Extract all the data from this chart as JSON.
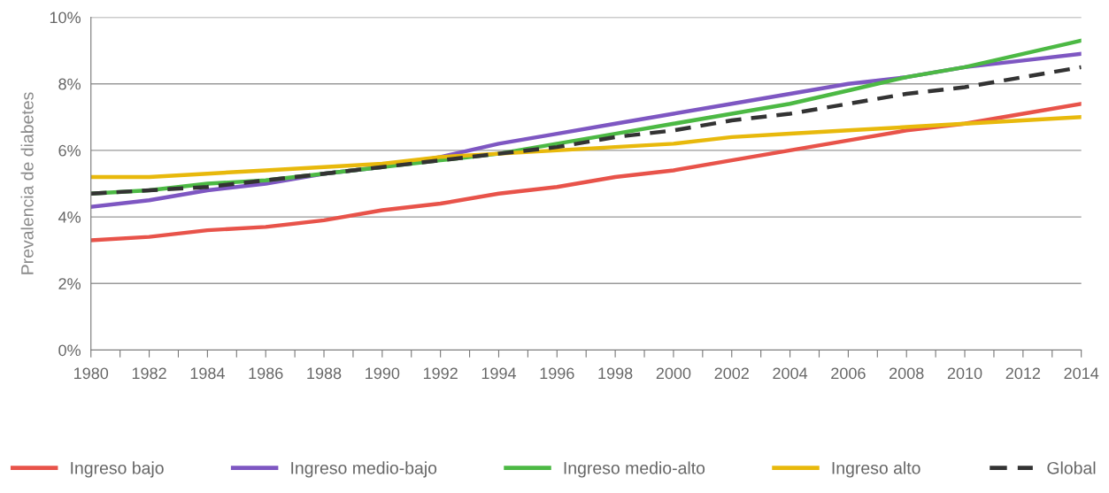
{
  "chart_data": {
    "type": "line",
    "ylabel": "Prevalencia de diabetes",
    "x": [
      1980,
      1982,
      1984,
      1986,
      1988,
      1990,
      1992,
      1994,
      1996,
      1998,
      2000,
      2002,
      2004,
      2006,
      2008,
      2010,
      2012,
      2014
    ],
    "xlim": [
      1980,
      2014
    ],
    "xticks": [
      1980,
      {
        "value": 1981,
        "label": null
      },
      1982,
      {
        "value": 1983,
        "label": null
      },
      1984,
      {
        "value": 1985,
        "label": null
      },
      1986,
      {
        "value": 1987,
        "label": null
      },
      1988,
      {
        "value": 1989,
        "label": null
      },
      1990,
      {
        "value": 1991,
        "label": null
      },
      1992,
      {
        "value": 1993,
        "label": null
      },
      1994,
      {
        "value": 1995,
        "label": null
      },
      1996,
      {
        "value": 1997,
        "label": null
      },
      1998,
      {
        "value": 1999,
        "label": null
      },
      2000,
      {
        "value": 2001,
        "label": null
      },
      2002,
      {
        "value": 2003,
        "label": null
      },
      2004,
      {
        "value": 2005,
        "label": null
      },
      2006,
      {
        "value": 2007,
        "label": null
      },
      2008,
      {
        "value": 2009,
        "label": null
      },
      2010,
      {
        "value": 2011,
        "label": null
      },
      2012,
      {
        "value": 2013,
        "label": null
      },
      2014
    ],
    "ylim": [
      0,
      10
    ],
    "yticks": [
      {
        "value": 0,
        "label": "0%"
      },
      {
        "value": 2,
        "label": "2%"
      },
      {
        "value": 4,
        "label": "4%"
      },
      {
        "value": 6,
        "label": "6%"
      },
      {
        "value": 8,
        "label": "8%"
      },
      {
        "value": 10,
        "label": "10%"
      }
    ],
    "grid": "y",
    "legend": "bottom",
    "marker": "none",
    "series": [
      {
        "name": "Ingreso bajo",
        "color": "#e8534a",
        "line_style": "solid",
        "values": [
          3.3,
          3.4,
          3.6,
          3.7,
          3.9,
          4.2,
          4.4,
          4.7,
          4.9,
          5.2,
          5.4,
          5.7,
          6.0,
          6.3,
          6.6,
          6.8,
          7.1,
          7.4
        ]
      },
      {
        "name": "Ingreso medio-bajo",
        "color": "#7e57c2",
        "line_style": "solid",
        "values": [
          4.3,
          4.5,
          4.8,
          5.0,
          5.3,
          5.5,
          5.8,
          6.2,
          6.5,
          6.8,
          7.1,
          7.4,
          7.7,
          8.0,
          8.2,
          8.5,
          8.7,
          8.9
        ]
      },
      {
        "name": "Ingreso medio-alto",
        "color": "#4cb944",
        "line_style": "solid",
        "values": [
          4.7,
          4.8,
          5.0,
          5.1,
          5.3,
          5.5,
          5.7,
          5.9,
          6.2,
          6.5,
          6.8,
          7.1,
          7.4,
          7.8,
          8.2,
          8.5,
          8.9,
          9.3
        ]
      },
      {
        "name": "Ingreso alto",
        "color": "#e8b90c",
        "line_style": "solid",
        "values": [
          5.2,
          5.2,
          5.3,
          5.4,
          5.5,
          5.6,
          5.8,
          5.9,
          6.0,
          6.1,
          6.2,
          6.4,
          6.5,
          6.6,
          6.7,
          6.8,
          6.9,
          7.0
        ]
      },
      {
        "name": "Global",
        "color": "#333333",
        "line_style": "dashed",
        "values": [
          4.7,
          4.8,
          4.9,
          5.1,
          5.3,
          5.5,
          5.7,
          5.9,
          6.1,
          6.4,
          6.6,
          6.9,
          7.1,
          7.4,
          7.7,
          7.9,
          8.2,
          8.5
        ]
      }
    ]
  }
}
